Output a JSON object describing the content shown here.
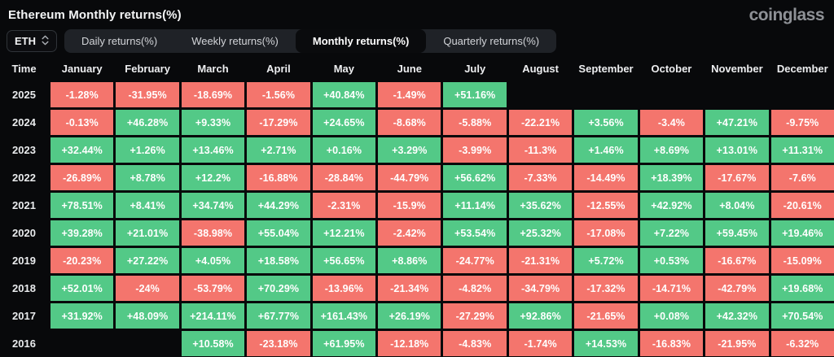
{
  "header": {
    "title": "Ethereum Monthly returns(%)",
    "brand": "coinglass"
  },
  "controls": {
    "symbol": "ETH",
    "tabs": [
      {
        "id": "daily",
        "label": "Daily returns(%)",
        "active": false
      },
      {
        "id": "weekly",
        "label": "Weekly returns(%)",
        "active": false
      },
      {
        "id": "monthly",
        "label": "Monthly returns(%)",
        "active": true
      },
      {
        "id": "quarterly",
        "label": "Quarterly returns(%)",
        "active": false
      }
    ]
  },
  "colors": {
    "positive": "#53c987",
    "negative": "#f4756d",
    "background": "#08090b"
  },
  "table": {
    "time_header": "Time",
    "months": [
      "January",
      "February",
      "March",
      "April",
      "May",
      "June",
      "July",
      "August",
      "September",
      "October",
      "November",
      "December"
    ],
    "rows": [
      {
        "year": "2025",
        "values": [
          "-1.28%",
          "-31.95%",
          "-18.69%",
          "-1.56%",
          "+40.84%",
          "-1.49%",
          "+51.16%",
          "",
          "",
          "",
          "",
          ""
        ]
      },
      {
        "year": "2024",
        "values": [
          "-0.13%",
          "+46.28%",
          "+9.33%",
          "-17.29%",
          "+24.65%",
          "-8.68%",
          "-5.88%",
          "-22.21%",
          "+3.56%",
          "-3.4%",
          "+47.21%",
          "-9.75%"
        ]
      },
      {
        "year": "2023",
        "values": [
          "+32.44%",
          "+1.26%",
          "+13.46%",
          "+2.71%",
          "+0.16%",
          "+3.29%",
          "-3.99%",
          "-11.3%",
          "+1.46%",
          "+8.69%",
          "+13.01%",
          "+11.31%"
        ]
      },
      {
        "year": "2022",
        "values": [
          "-26.89%",
          "+8.78%",
          "+12.2%",
          "-16.88%",
          "-28.84%",
          "-44.79%",
          "+56.62%",
          "-7.33%",
          "-14.49%",
          "+18.39%",
          "-17.67%",
          "-7.6%"
        ]
      },
      {
        "year": "2021",
        "values": [
          "+78.51%",
          "+8.41%",
          "+34.74%",
          "+44.29%",
          "-2.31%",
          "-15.9%",
          "+11.14%",
          "+35.62%",
          "-12.55%",
          "+42.92%",
          "+8.04%",
          "-20.61%"
        ]
      },
      {
        "year": "2020",
        "values": [
          "+39.28%",
          "+21.01%",
          "-38.98%",
          "+55.04%",
          "+12.21%",
          "-2.42%",
          "+53.54%",
          "+25.32%",
          "-17.08%",
          "+7.22%",
          "+59.45%",
          "+19.46%"
        ]
      },
      {
        "year": "2019",
        "values": [
          "-20.23%",
          "+27.22%",
          "+4.05%",
          "+18.58%",
          "+56.65%",
          "+8.86%",
          "-24.77%",
          "-21.31%",
          "+5.72%",
          "+0.53%",
          "-16.67%",
          "-15.09%"
        ]
      },
      {
        "year": "2018",
        "values": [
          "+52.01%",
          "-24%",
          "-53.79%",
          "+70.29%",
          "-13.96%",
          "-21.34%",
          "-4.82%",
          "-34.79%",
          "-17.32%",
          "-14.71%",
          "-42.79%",
          "+19.68%"
        ]
      },
      {
        "year": "2017",
        "values": [
          "+31.92%",
          "+48.09%",
          "+214.11%",
          "+67.77%",
          "+161.43%",
          "+26.19%",
          "-27.29%",
          "+92.86%",
          "-21.65%",
          "+0.08%",
          "+42.32%",
          "+70.54%"
        ]
      },
      {
        "year": "2016",
        "values": [
          "",
          "",
          "+10.58%",
          "-23.18%",
          "+61.95%",
          "-12.18%",
          "-4.83%",
          "-1.74%",
          "+14.53%",
          "-16.83%",
          "-21.95%",
          "-6.32%"
        ]
      }
    ]
  }
}
